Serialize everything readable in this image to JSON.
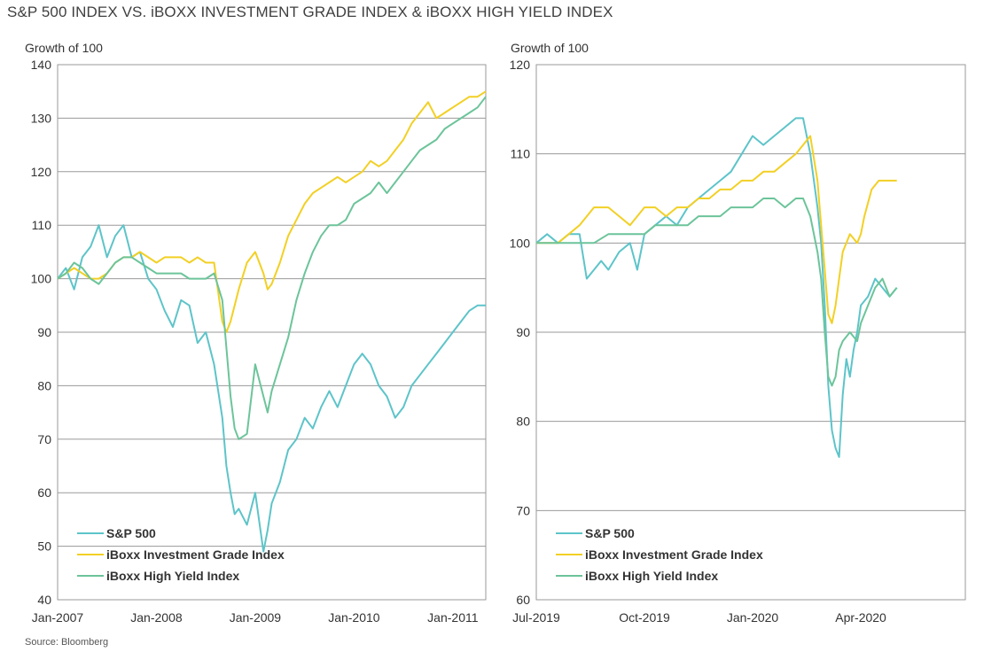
{
  "title": "S&P 500 INDEX VS. iBOXX INVESTMENT GRADE INDEX & iBOXX HIGH YIELD INDEX",
  "source": "Source: Bloomberg",
  "colors": {
    "sp500": "#5dc4c9",
    "ig": "#f2d024",
    "hy": "#6cc49a",
    "grid": "#888888"
  },
  "chart_data": [
    {
      "type": "line",
      "ylabel": "Growth of 100",
      "ylim": [
        40,
        140
      ],
      "yticks": [
        40,
        50,
        60,
        70,
        80,
        90,
        100,
        110,
        120,
        130,
        140
      ],
      "xlim": [
        0,
        52
      ],
      "xticks": [
        {
          "label": "Jan-2007",
          "x": 0
        },
        {
          "label": "Jan-2008",
          "x": 12
        },
        {
          "label": "Jan-2009",
          "x": 24
        },
        {
          "label": "Jan-2010",
          "x": 36
        },
        {
          "label": "Jan-2011",
          "x": 48
        }
      ],
      "legend": "bottom-left",
      "grid": true,
      "series": [
        {
          "name": "S&P 500",
          "color": "#5dc4c9",
          "x": [
            0,
            1,
            2,
            3,
            4,
            5,
            6,
            7,
            8,
            9,
            10,
            11,
            12,
            13,
            14,
            15,
            16,
            17,
            18,
            19,
            20,
            20.5,
            21,
            21.5,
            22,
            23,
            24,
            25,
            25.5,
            26,
            27,
            28,
            29,
            30,
            31,
            32,
            33,
            34,
            35,
            36,
            37,
            38,
            39,
            40,
            41,
            42,
            43,
            44,
            45,
            46,
            47,
            48,
            49,
            50,
            51,
            52
          ],
          "y": [
            100,
            102,
            98,
            104,
            106,
            110,
            104,
            108,
            110,
            104,
            105,
            100,
            98,
            94,
            91,
            96,
            95,
            88,
            90,
            84,
            74,
            65,
            60,
            56,
            57,
            54,
            60,
            49,
            53,
            58,
            62,
            68,
            70,
            74,
            72,
            76,
            79,
            76,
            80,
            84,
            86,
            84,
            80,
            78,
            74,
            76,
            80,
            82,
            84,
            86,
            88,
            90,
            92,
            94,
            95,
            95
          ]
        },
        {
          "name": "iBoxx Investment Grade Index",
          "color": "#f2d024",
          "x": [
            0,
            1,
            2,
            3,
            4,
            5,
            6,
            7,
            8,
            9,
            10,
            11,
            12,
            13,
            14,
            15,
            16,
            17,
            18,
            19,
            20,
            20.5,
            21,
            22,
            23,
            24,
            25,
            25.5,
            26,
            27,
            28,
            29,
            30,
            31,
            32,
            33,
            34,
            35,
            36,
            37,
            38,
            39,
            40,
            41,
            42,
            43,
            44,
            45,
            46,
            47,
            48,
            49,
            50,
            51,
            52
          ],
          "y": [
            100,
            101,
            102,
            101,
            100,
            100,
            101,
            103,
            104,
            104,
            105,
            104,
            103,
            104,
            104,
            104,
            103,
            104,
            103,
            103,
            92,
            90,
            92,
            98,
            103,
            105,
            101,
            98,
            99,
            103,
            108,
            111,
            114,
            116,
            117,
            118,
            119,
            118,
            119,
            120,
            122,
            121,
            122,
            124,
            126,
            129,
            131,
            133,
            130,
            131,
            132,
            133,
            134,
            134,
            135
          ]
        },
        {
          "name": "iBoxx High Yield Index",
          "color": "#6cc49a",
          "x": [
            0,
            1,
            2,
            3,
            4,
            5,
            6,
            7,
            8,
            9,
            10,
            11,
            12,
            13,
            14,
            15,
            16,
            17,
            18,
            19,
            20,
            21,
            21.5,
            22,
            23,
            24,
            25,
            25.5,
            26,
            27,
            28,
            29,
            30,
            31,
            32,
            33,
            34,
            35,
            36,
            37,
            38,
            39,
            40,
            41,
            42,
            43,
            44,
            45,
            46,
            47,
            48,
            49,
            50,
            51,
            52
          ],
          "y": [
            100,
            101,
            103,
            102,
            100,
            99,
            101,
            103,
            104,
            104,
            103,
            102,
            101,
            101,
            101,
            101,
            100,
            100,
            100,
            101,
            96,
            78,
            72,
            70,
            71,
            84,
            78,
            75,
            79,
            84,
            89,
            96,
            101,
            105,
            108,
            110,
            110,
            111,
            114,
            115,
            116,
            118,
            116,
            118,
            120,
            122,
            124,
            125,
            126,
            128,
            129,
            130,
            131,
            132,
            134
          ]
        }
      ]
    },
    {
      "type": "line",
      "ylabel": "Growth of 100",
      "ylim": [
        60,
        120
      ],
      "yticks": [
        60,
        70,
        80,
        90,
        100,
        110,
        120
      ],
      "xlim": [
        0,
        11.9
      ],
      "xticks": [
        {
          "label": "Jul-2019",
          "x": 0
        },
        {
          "label": "Oct-2019",
          "x": 3
        },
        {
          "label": "Jan-2020",
          "x": 6
        },
        {
          "label": "Apr-2020",
          "x": 9
        }
      ],
      "legend": "bottom-left",
      "grid": true,
      "series": [
        {
          "name": "S&P 500",
          "color": "#5dc4c9",
          "x": [
            0,
            0.3,
            0.6,
            0.9,
            1.2,
            1.4,
            1.6,
            1.8,
            2.0,
            2.3,
            2.6,
            2.8,
            3.0,
            3.3,
            3.6,
            3.9,
            4.2,
            4.5,
            4.8,
            5.1,
            5.4,
            5.7,
            6.0,
            6.3,
            6.6,
            6.9,
            7.2,
            7.4,
            7.6,
            7.8,
            7.9,
            8.0,
            8.1,
            8.2,
            8.3,
            8.4,
            8.5,
            8.6,
            8.7,
            8.8,
            8.9,
            9.0,
            9.2,
            9.4,
            9.6,
            9.8,
            10.0
          ],
          "y": [
            100,
            101,
            100,
            101,
            101,
            96,
            97,
            98,
            97,
            99,
            100,
            97,
            101,
            102,
            103,
            102,
            104,
            105,
            106,
            107,
            108,
            110,
            112,
            111,
            112,
            113,
            114,
            114,
            110,
            104,
            100,
            93,
            84,
            79,
            77,
            76,
            83,
            87,
            85,
            88,
            90,
            93,
            94,
            96,
            95,
            94,
            95
          ]
        },
        {
          "name": "iBoxx Investment Grade Index",
          "color": "#f2d024",
          "x": [
            0,
            0.3,
            0.6,
            0.9,
            1.2,
            1.6,
            2.0,
            2.3,
            2.6,
            2.8,
            3.0,
            3.3,
            3.6,
            3.9,
            4.2,
            4.5,
            4.8,
            5.1,
            5.4,
            5.7,
            6.0,
            6.3,
            6.6,
            6.9,
            7.2,
            7.4,
            7.6,
            7.8,
            7.9,
            8.0,
            8.1,
            8.2,
            8.3,
            8.4,
            8.5,
            8.7,
            8.9,
            9.0,
            9.1,
            9.3,
            9.5,
            9.7,
            9.9,
            10.0
          ],
          "y": [
            100,
            100,
            100,
            101,
            102,
            104,
            104,
            103,
            102,
            103,
            104,
            104,
            103,
            104,
            104,
            105,
            105,
            106,
            106,
            107,
            107,
            108,
            108,
            109,
            110,
            111,
            112,
            107,
            102,
            97,
            92,
            91,
            93,
            96,
            99,
            101,
            100,
            101,
            103,
            106,
            107,
            107,
            107,
            107
          ]
        },
        {
          "name": "iBoxx High Yield Index",
          "color": "#6cc49a",
          "x": [
            0,
            0.3,
            0.6,
            0.9,
            1.2,
            1.6,
            2.0,
            2.3,
            2.6,
            2.8,
            3.0,
            3.3,
            3.6,
            3.9,
            4.2,
            4.5,
            4.8,
            5.1,
            5.4,
            5.7,
            6.0,
            6.3,
            6.6,
            6.9,
            7.2,
            7.4,
            7.6,
            7.8,
            7.9,
            8.0,
            8.1,
            8.2,
            8.3,
            8.4,
            8.5,
            8.7,
            8.9,
            9.0,
            9.2,
            9.4,
            9.6,
            9.8,
            10.0
          ],
          "y": [
            100,
            100,
            100,
            100,
            100,
            100,
            101,
            101,
            101,
            101,
            101,
            102,
            102,
            102,
            102,
            103,
            103,
            103,
            104,
            104,
            104,
            105,
            105,
            104,
            105,
            105,
            103,
            99,
            96,
            90,
            85,
            84,
            85,
            88,
            89,
            90,
            89,
            91,
            93,
            95,
            96,
            94,
            95
          ]
        }
      ]
    }
  ]
}
